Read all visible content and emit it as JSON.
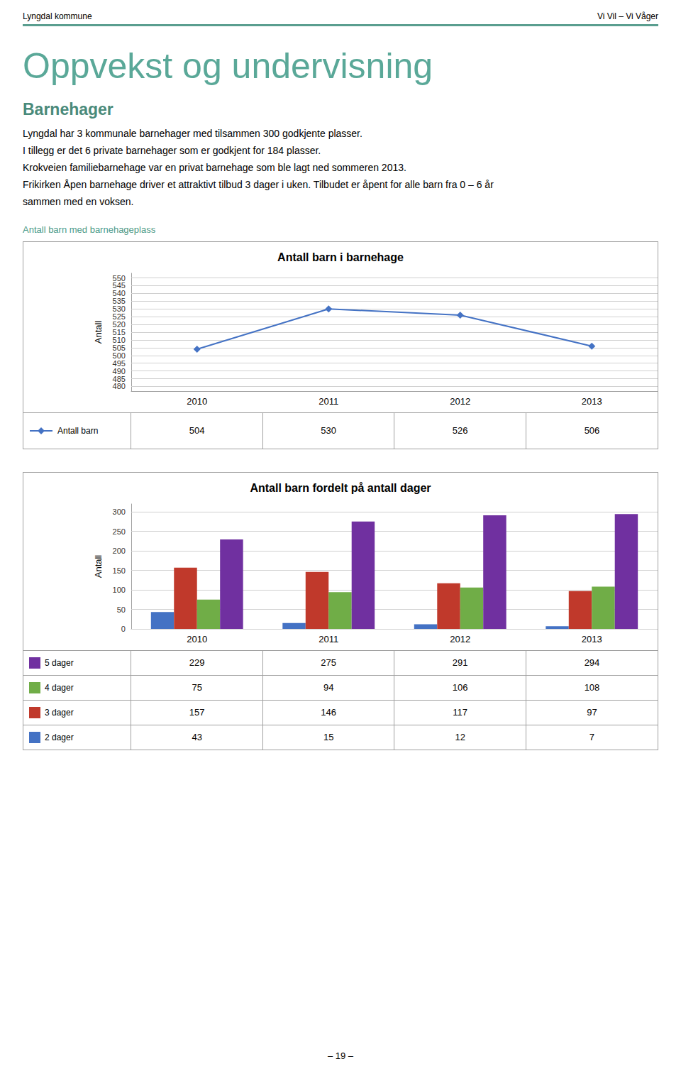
{
  "header_left": "Lyngdal kommune",
  "header_right": "Vi Vil – Vi Våger",
  "title": "Oppvekst og undervisning",
  "subtitle": "Barnehager",
  "text": [
    "Lyngdal har 3 kommunale barnehager med tilsammen 300 godkjente plasser.",
    "I tillegg er det 6 private barnehager som er godkjent for 184 plasser.",
    "Krokveien familiebarnehage var en privat barnehage som ble lagt ned sommeren 2013.",
    "Frikirken Åpen barnehage driver et attraktivt tilbud 3 dager i uken. Tilbudet er åpent for alle barn fra 0 – 6 år",
    "sammen med en voksen."
  ],
  "footer": "– 19 –",
  "chart_data": [
    {
      "type": "line",
      "subtitle": "Antall barn med barnehageplass",
      "title": "Antall barn i barnehage",
      "ylabel": "Antall",
      "categories": [
        "2010",
        "2011",
        "2012",
        "2013"
      ],
      "series": [
        {
          "name": "Antall barn",
          "color": "#4472c4",
          "marker": "diamond",
          "values": [
            504,
            530,
            526,
            506
          ]
        }
      ],
      "ylim": [
        477,
        553
      ],
      "yticks": [
        480,
        485,
        490,
        495,
        500,
        505,
        510,
        515,
        520,
        525,
        530,
        535,
        540,
        545,
        550
      ],
      "grid": true,
      "legend": "bottom"
    },
    {
      "type": "bar",
      "title": "Antall barn fordelt på antall dager",
      "ylabel": "Antall",
      "categories": [
        "2010",
        "2011",
        "2012",
        "2013"
      ],
      "series": [
        {
          "name": "2 dager",
          "color": "#4472c4",
          "values": [
            43,
            15,
            12,
            7
          ]
        },
        {
          "name": "3 dager",
          "color": "#c0392b",
          "values": [
            157,
            146,
            117,
            97
          ]
        },
        {
          "name": "4 dager",
          "color": "#70ad47",
          "values": [
            75,
            94,
            106,
            108
          ]
        },
        {
          "name": "5 dager",
          "color": "#7030a0",
          "values": [
            229,
            275,
            291,
            294
          ]
        }
      ],
      "ylim": [
        0,
        320
      ],
      "yticks": [
        0,
        50,
        100,
        150,
        200,
        250,
        300
      ],
      "grid": true,
      "legend": "bottom"
    }
  ]
}
